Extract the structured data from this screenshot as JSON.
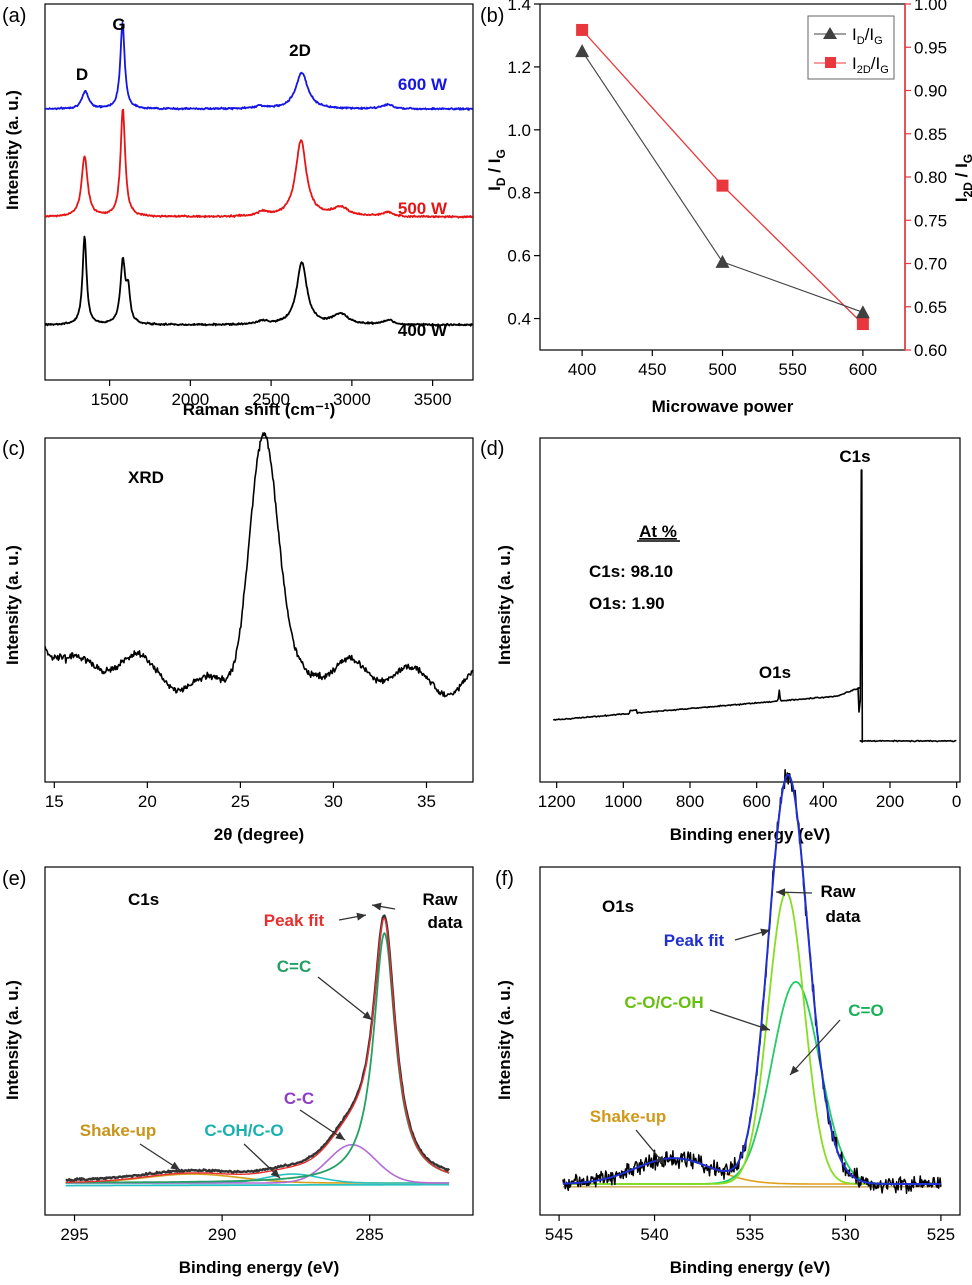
{
  "chart_data": [
    {
      "panel": "(a)",
      "type": "line",
      "xlabel": "Raman shift (cm⁻¹)",
      "ylabel": "Intensity (a. u.)",
      "xlim": [
        1100,
        3750
      ],
      "xticks": [
        1500,
        2000,
        2500,
        3000,
        3500
      ],
      "peak_labels": [
        "D",
        "G",
        "2D"
      ],
      "series": [
        {
          "name": "600 W",
          "color": "#1515e6",
          "offset": 2.0,
          "scale": 0.8,
          "peaks": [
            [
              1350,
              0.2,
              25
            ],
            [
              1580,
              1.0,
              16
            ],
            [
              2430,
              0.03,
              40
            ],
            [
              2690,
              0.42,
              45
            ],
            [
              3220,
              0.05,
              40
            ]
          ]
        },
        {
          "name": "500 W",
          "color": "#e61515",
          "offset": 1.0,
          "scale": 0.8,
          "peaks": [
            [
              1345,
              0.7,
              22
            ],
            [
              1582,
              1.25,
              17
            ],
            [
              2450,
              0.05,
              40
            ],
            [
              2685,
              0.88,
              40
            ],
            [
              2930,
              0.1,
              60
            ],
            [
              3220,
              0.05,
              40
            ]
          ]
        },
        {
          "name": "400 W",
          "color": "#000000",
          "offset": 0.0,
          "scale": 0.8,
          "peaks": [
            [
              1345,
              1.02,
              15
            ],
            [
              1582,
              0.72,
              18
            ],
            [
              1615,
              0.35,
              14
            ],
            [
              2450,
              0.04,
              40
            ],
            [
              2690,
              0.72,
              38
            ],
            [
              2930,
              0.12,
              55
            ],
            [
              3225,
              0.05,
              40
            ]
          ]
        }
      ]
    },
    {
      "panel": "(b)",
      "type": "line",
      "xlabel": "Microwave power",
      "ylabel_left": "ID / IG",
      "ylabel_right": "I2D / IG",
      "x": [
        400,
        500,
        600
      ],
      "xlim": [
        370,
        630
      ],
      "xticks": [
        400,
        450,
        500,
        550,
        600
      ],
      "ylim_left": [
        0.3,
        1.4
      ],
      "yticks_left": [
        0.4,
        0.6,
        0.8,
        1.0,
        1.2,
        1.4
      ],
      "ylim_right": [
        0.6,
        1.0
      ],
      "yticks_right": [
        0.6,
        0.65,
        0.7,
        0.75,
        0.8,
        0.85,
        0.9,
        0.95,
        1.0
      ],
      "legend_position": "top-right",
      "series": [
        {
          "name": "ID/IG",
          "axis": "left",
          "marker": "triangle",
          "color": "#404040",
          "values": [
            1.25,
            0.58,
            0.42
          ]
        },
        {
          "name": "I2D/IG",
          "axis": "right",
          "marker": "square",
          "color": "#e8383d",
          "values": [
            0.97,
            0.79,
            0.63
          ]
        }
      ]
    },
    {
      "panel": "(c)",
      "type": "line",
      "title": "XRD",
      "xlabel": "2θ (degree)",
      "ylabel": "Intensity (a. u.)",
      "xlim": [
        14.5,
        37.5
      ],
      "xticks": [
        15,
        20,
        25,
        30,
        35
      ],
      "series": [
        {
          "name": "",
          "color": "#000000",
          "peaks": [
            [
              26.2,
              1.0,
              0.95
            ]
          ]
        }
      ]
    },
    {
      "panel": "(d)",
      "type": "line",
      "xlabel": "Binding energy (eV)",
      "ylabel": "Intensity (a. u.)",
      "xlim": [
        1250,
        -10
      ],
      "xticks": [
        1200,
        1000,
        800,
        600,
        400,
        200,
        0
      ],
      "peak_labels": [
        "C1s",
        "O1s"
      ],
      "composition_heading": "At %",
      "composition": [
        "C1s: 98.10",
        "O1s: 1.90"
      ],
      "series": [
        {
          "name": "",
          "color": "#000000"
        }
      ]
    },
    {
      "panel": "(e)",
      "type": "line",
      "title": "C1s",
      "xlabel": "Binding energy (eV)",
      "ylabel": "Intensity (a. u.)",
      "xlim": [
        296,
        281.5
      ],
      "xticks": [
        295,
        290,
        285
      ],
      "annotations": [
        "Raw",
        "data",
        "Peak fit",
        "C=C",
        "C-C",
        "C-OH/C-O",
        "Shake-up"
      ],
      "series": [
        {
          "name": "Raw data",
          "color": "#333333"
        },
        {
          "name": "Peak fit",
          "color": "#e63030"
        },
        {
          "name": "C=C",
          "color": "#25a065",
          "center": 284.5,
          "height": 1.0
        },
        {
          "name": "C-C",
          "color": "#b26bd6",
          "center": 285.5,
          "height": 0.15
        },
        {
          "name": "C-OH/C-O",
          "color": "#2bc0c0",
          "center": 287.5,
          "height": 0.04
        },
        {
          "name": "Shake-up",
          "color": "#d4a020",
          "center": 291.0,
          "height": 0.04
        }
      ]
    },
    {
      "panel": "(f)",
      "type": "line",
      "title": "O1s",
      "xlabel": "Binding energy (eV)",
      "ylabel": "Intensity (a. u.)",
      "xlim": [
        546,
        524
      ],
      "xticks": [
        545,
        540,
        535,
        530,
        525
      ],
      "annotations": [
        "Raw",
        "data",
        "Peak fit",
        "C-O/C-OH",
        "C=O",
        "Shake-up"
      ],
      "series": [
        {
          "name": "Raw data",
          "color": "#000000"
        },
        {
          "name": "Peak fit",
          "color": "#2030d0"
        },
        {
          "name": "C-O/C-OH",
          "color": "#88dd22",
          "center": 533.0,
          "height": 0.62
        },
        {
          "name": "C=O",
          "color": "#22cc66",
          "center": 532.5,
          "height": 0.42
        },
        {
          "name": "Shake-up",
          "color": "#e0a020",
          "center": 539.0,
          "height": 0.06
        }
      ]
    }
  ]
}
